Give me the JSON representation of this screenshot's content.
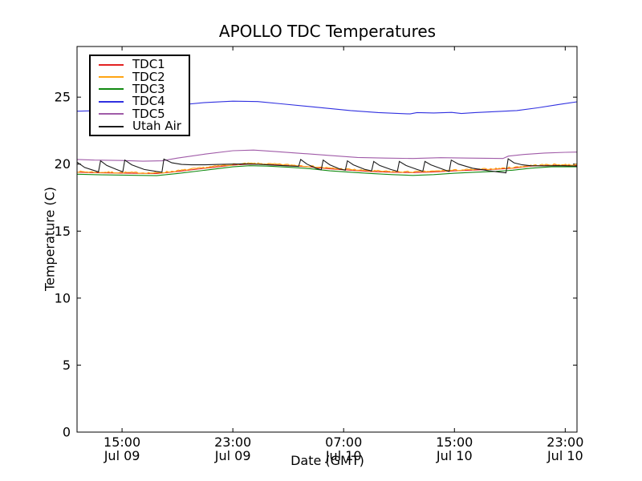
{
  "chart_data": {
    "type": "line",
    "title": "APOLLO TDC Temperatures",
    "xlabel": "Date (GMT)",
    "ylabel": "Temperature (C)",
    "x_unit": "hours since Jul 09 00:00 GMT",
    "xlim": [
      11.75,
      47.85
    ],
    "ylim": [
      0,
      28.78
    ],
    "grid": false,
    "legend_position": "upper-left",
    "yticks": [
      0,
      5,
      10,
      15,
      20,
      25
    ],
    "xticks": [
      {
        "value": 15,
        "time": "15:00",
        "date": "Jul 09"
      },
      {
        "value": 23,
        "time": "23:00",
        "date": "Jul 09"
      },
      {
        "value": 31,
        "time": "07:00",
        "date": "Jul 10"
      },
      {
        "value": 39,
        "time": "15:00",
        "date": "Jul 10"
      },
      {
        "value": 47,
        "time": "23:00",
        "date": "Jul 10"
      }
    ],
    "series": [
      {
        "name": "TDC1",
        "color": "#e22222",
        "points": [
          [
            11.75,
            19.4
          ],
          [
            13.5,
            19.35
          ],
          [
            15.5,
            19.32
          ],
          [
            17.5,
            19.3
          ],
          [
            19,
            19.45
          ],
          [
            21,
            19.7
          ],
          [
            23,
            19.93
          ],
          [
            24.2,
            20.0
          ],
          [
            25.5,
            19.97
          ],
          [
            27,
            19.9
          ],
          [
            28.5,
            19.8
          ],
          [
            30,
            19.65
          ],
          [
            31.5,
            19.55
          ],
          [
            33,
            19.45
          ],
          [
            34.5,
            19.4
          ],
          [
            36,
            19.37
          ],
          [
            37.5,
            19.42
          ],
          [
            39,
            19.5
          ],
          [
            40.5,
            19.56
          ],
          [
            42,
            19.62
          ],
          [
            43.2,
            19.7
          ],
          [
            44.5,
            19.85
          ],
          [
            46,
            19.92
          ],
          [
            47.85,
            19.9
          ]
        ]
      },
      {
        "name": "TDC2",
        "color": "#ffa513",
        "noise": 0.055,
        "points": [
          [
            11.75,
            19.44
          ],
          [
            13.5,
            19.4
          ],
          [
            15.5,
            19.37
          ],
          [
            17.5,
            19.34
          ],
          [
            19,
            19.5
          ],
          [
            21,
            19.75
          ],
          [
            23,
            19.98
          ],
          [
            24.2,
            20.05
          ],
          [
            25.5,
            20.02
          ],
          [
            27,
            19.95
          ],
          [
            28.5,
            19.85
          ],
          [
            30,
            19.7
          ],
          [
            31.5,
            19.6
          ],
          [
            33,
            19.5
          ],
          [
            34.5,
            19.44
          ],
          [
            36,
            19.42
          ],
          [
            37.5,
            19.47
          ],
          [
            39,
            19.55
          ],
          [
            40.5,
            19.6
          ],
          [
            42,
            19.66
          ],
          [
            43.2,
            19.75
          ],
          [
            44.5,
            19.9
          ],
          [
            46,
            19.97
          ],
          [
            47.85,
            19.95
          ]
        ]
      },
      {
        "name": "TDC3",
        "color": "#118a11",
        "points": [
          [
            11.75,
            19.25
          ],
          [
            13.5,
            19.2
          ],
          [
            15.5,
            19.17
          ],
          [
            17.5,
            19.14
          ],
          [
            19,
            19.3
          ],
          [
            21,
            19.55
          ],
          [
            23,
            19.8
          ],
          [
            24.2,
            19.88
          ],
          [
            25.5,
            19.85
          ],
          [
            27,
            19.77
          ],
          [
            28.5,
            19.67
          ],
          [
            30,
            19.5
          ],
          [
            31.5,
            19.4
          ],
          [
            33,
            19.3
          ],
          [
            34.5,
            19.22
          ],
          [
            36,
            19.16
          ],
          [
            37.5,
            19.22
          ],
          [
            39,
            19.32
          ],
          [
            40.5,
            19.4
          ],
          [
            42,
            19.46
          ],
          [
            43.2,
            19.55
          ],
          [
            44.5,
            19.7
          ],
          [
            46,
            19.8
          ],
          [
            47.85,
            19.8
          ]
        ]
      },
      {
        "name": "TDC4",
        "color": "#3030e0",
        "points": [
          [
            11.75,
            23.95
          ],
          [
            13.5,
            24.0
          ],
          [
            16,
            24.15
          ],
          [
            18.5,
            24.35
          ],
          [
            21,
            24.6
          ],
          [
            23,
            24.7
          ],
          [
            24.8,
            24.67
          ],
          [
            26.5,
            24.5
          ],
          [
            29,
            24.25
          ],
          [
            31.5,
            24.0
          ],
          [
            33.5,
            23.85
          ],
          [
            35.8,
            23.75
          ],
          [
            36.3,
            23.85
          ],
          [
            37.5,
            23.82
          ],
          [
            38.8,
            23.86
          ],
          [
            39.5,
            23.78
          ],
          [
            40.5,
            23.85
          ],
          [
            42,
            23.92
          ],
          [
            43.5,
            24.0
          ],
          [
            45,
            24.2
          ],
          [
            46.5,
            24.45
          ],
          [
            47.85,
            24.65
          ]
        ]
      },
      {
        "name": "TDC5",
        "color": "#a05ba8",
        "points": [
          [
            11.75,
            20.35
          ],
          [
            13,
            20.3
          ],
          [
            15,
            20.27
          ],
          [
            16.5,
            20.22
          ],
          [
            17.9,
            20.25
          ],
          [
            19,
            20.45
          ],
          [
            21,
            20.75
          ],
          [
            23,
            21.0
          ],
          [
            24.5,
            21.05
          ],
          [
            26,
            20.95
          ],
          [
            28,
            20.8
          ],
          [
            30,
            20.65
          ],
          [
            32,
            20.5
          ],
          [
            34,
            20.45
          ],
          [
            36,
            20.42
          ],
          [
            38,
            20.48
          ],
          [
            40,
            20.45
          ],
          [
            42.5,
            20.42
          ],
          [
            42.9,
            20.6
          ],
          [
            44,
            20.72
          ],
          [
            45.5,
            20.83
          ],
          [
            47,
            20.88
          ],
          [
            47.85,
            20.9
          ]
        ]
      },
      {
        "name": "Utah Air",
        "color": "#1c1c1c",
        "points": [
          [
            11.75,
            20.15
          ],
          [
            12.3,
            19.75
          ],
          [
            13.0,
            19.52
          ],
          [
            13.3,
            19.42
          ],
          [
            13.45,
            20.25
          ],
          [
            13.9,
            19.9
          ],
          [
            14.6,
            19.6
          ],
          [
            15.05,
            19.42
          ],
          [
            15.2,
            20.3
          ],
          [
            15.7,
            19.95
          ],
          [
            16.6,
            19.6
          ],
          [
            17.5,
            19.45
          ],
          [
            17.88,
            19.4
          ],
          [
            18.02,
            20.38
          ],
          [
            18.6,
            20.1
          ],
          [
            19.3,
            19.98
          ],
          [
            20,
            19.95
          ],
          [
            21,
            19.95
          ],
          [
            22,
            19.98
          ],
          [
            23,
            20.0
          ],
          [
            24,
            20.02
          ],
          [
            25,
            19.98
          ],
          [
            26,
            19.92
          ],
          [
            27,
            19.87
          ],
          [
            27.75,
            19.83
          ],
          [
            27.9,
            20.35
          ],
          [
            28.35,
            20.0
          ],
          [
            29.0,
            19.7
          ],
          [
            29.38,
            19.58
          ],
          [
            29.52,
            20.3
          ],
          [
            30.0,
            19.95
          ],
          [
            30.7,
            19.65
          ],
          [
            31.12,
            19.55
          ],
          [
            31.27,
            20.25
          ],
          [
            31.7,
            19.95
          ],
          [
            32.5,
            19.62
          ],
          [
            33.02,
            19.5
          ],
          [
            33.17,
            20.2
          ],
          [
            33.6,
            19.9
          ],
          [
            34.4,
            19.6
          ],
          [
            34.88,
            19.47
          ],
          [
            35.02,
            20.2
          ],
          [
            35.5,
            19.9
          ],
          [
            36.3,
            19.6
          ],
          [
            36.72,
            19.47
          ],
          [
            36.87,
            20.2
          ],
          [
            37.3,
            19.95
          ],
          [
            38.2,
            19.6
          ],
          [
            38.62,
            19.45
          ],
          [
            38.77,
            20.3
          ],
          [
            39.3,
            20.0
          ],
          [
            40.3,
            19.7
          ],
          [
            41.5,
            19.5
          ],
          [
            42.55,
            19.37
          ],
          [
            42.72,
            19.35
          ],
          [
            42.88,
            20.4
          ],
          [
            43.3,
            20.1
          ],
          [
            43.9,
            19.95
          ],
          [
            44.5,
            19.88
          ],
          [
            45.5,
            19.87
          ],
          [
            46.5,
            19.88
          ],
          [
            47.85,
            19.85
          ]
        ]
      }
    ]
  }
}
